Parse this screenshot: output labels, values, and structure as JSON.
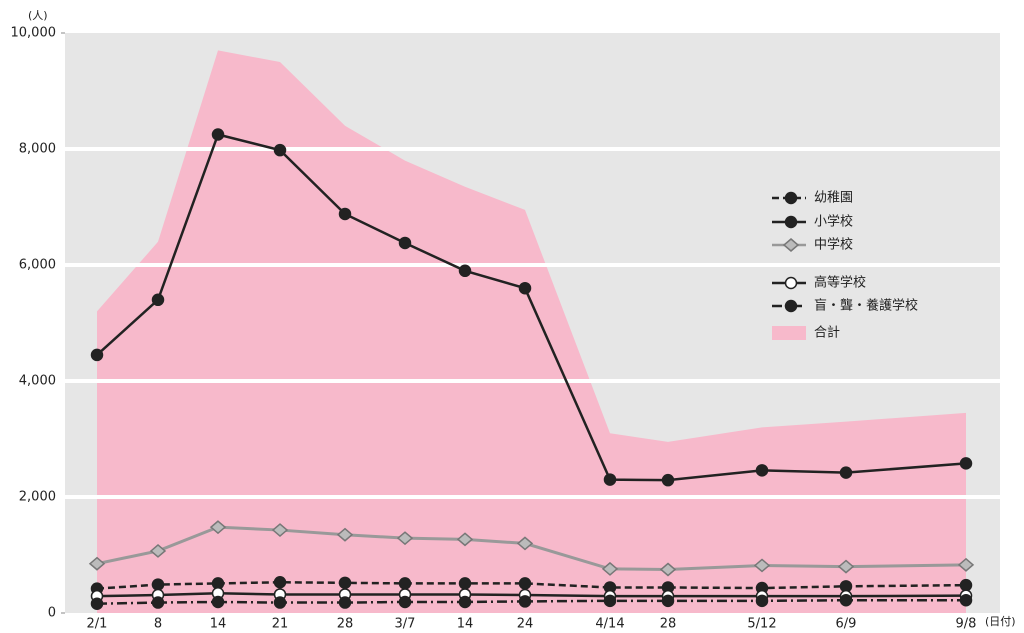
{
  "chart_data": {
    "type": "line",
    "y_unit": "(人)",
    "x_unit": "(日付)",
    "categories": [
      "2/1",
      "8",
      "14",
      "21",
      "28",
      "3/7",
      "14",
      "24",
      "4/14",
      "28",
      "5/12",
      "6/9",
      "9/8"
    ],
    "ylim": [
      0,
      10000
    ],
    "yticks": [
      0,
      {
        "value": 2000,
        "label": "2,000"
      },
      {
        "value": 4000,
        "label": "4,000"
      },
      {
        "value": 6000,
        "label": "6,000"
      },
      {
        "value": 8000,
        "label": "8,000"
      },
      {
        "value": 10000,
        "label": "10,000"
      }
    ],
    "grid": true,
    "series": [
      {
        "name": "合計",
        "kind": "area",
        "color": "#f7b9cb",
        "values": [
          5200,
          6400,
          9700,
          9500,
          8400,
          7800,
          7350,
          6950,
          3100,
          2950,
          3200,
          3300,
          3450
        ]
      },
      {
        "name": "中学校",
        "color": "#999999",
        "marker": "diamond",
        "dash": "solid",
        "values": [
          850,
          1070,
          1480,
          1430,
          1350,
          1290,
          1270,
          1200,
          760,
          750,
          820,
          800,
          830
        ]
      },
      {
        "name": "幼稚園",
        "color": "#222222",
        "marker": "filled",
        "dash": "dashed",
        "values": [
          420,
          490,
          510,
          530,
          520,
          510,
          510,
          510,
          440,
          440,
          430,
          460,
          480
        ]
      },
      {
        "name": "高等学校",
        "color": "#222222",
        "marker": "open",
        "dash": "solid",
        "values": [
          290,
          310,
          340,
          320,
          320,
          320,
          320,
          310,
          290,
          290,
          290,
          290,
          300
        ]
      },
      {
        "name": "盲・聾・養護学校",
        "color": "#222222",
        "marker": "filled",
        "dash": "dashdot",
        "values": [
          160,
          180,
          190,
          180,
          180,
          190,
          190,
          200,
          210,
          210,
          210,
          220,
          220
        ]
      },
      {
        "name": "小学校",
        "color": "#222222",
        "marker": "filled",
        "dash": "solid",
        "values": [
          4450,
          5400,
          8250,
          7980,
          6880,
          6380,
          5900,
          5600,
          2300,
          2290,
          2460,
          2420,
          2580
        ]
      }
    ],
    "legend_order": [
      2,
      5,
      1,
      3,
      4,
      0
    ]
  }
}
